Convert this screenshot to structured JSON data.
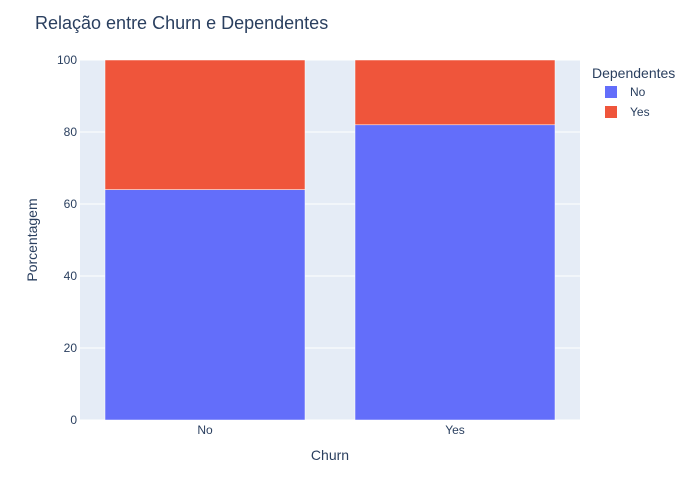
{
  "chart_data": {
    "type": "bar",
    "barmode": "stack",
    "title": "Relação entre Churn e Dependentes",
    "xlabel": "Churn",
    "ylabel": "Porcentagem",
    "categories": [
      "No",
      "Yes"
    ],
    "ylim": [
      0,
      100
    ],
    "yticks": [
      0,
      20,
      40,
      60,
      80,
      100
    ],
    "grid": true,
    "legend": {
      "title": "Dependentes",
      "placement": "top-right"
    },
    "series": [
      {
        "name": "No",
        "values": [
          64,
          82
        ],
        "color": "#636efa"
      },
      {
        "name": "Yes",
        "values": [
          36,
          18
        ],
        "color": "#ef553b"
      }
    ],
    "plot_background": "#e5ecf6"
  }
}
